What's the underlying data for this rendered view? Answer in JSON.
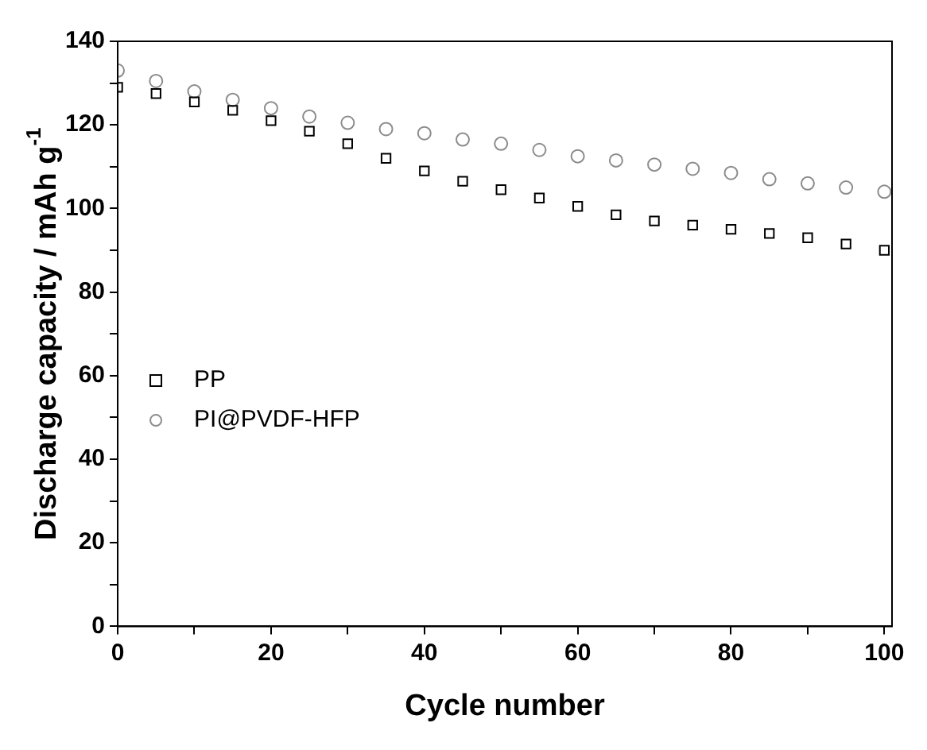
{
  "chart_data": {
    "type": "scatter",
    "xlabel": "Cycle number",
    "ylabel": "Discharge capacity / mAh g$^{-1}$",
    "x": [
      0,
      5,
      10,
      15,
      20,
      25,
      30,
      35,
      40,
      45,
      50,
      55,
      60,
      65,
      70,
      75,
      80,
      85,
      90,
      95,
      100
    ],
    "series": [
      {
        "name": "PP",
        "color": "#000000",
        "marker": "square",
        "values": [
          129,
          127.5,
          125.5,
          123.5,
          121,
          118.5,
          115.5,
          112,
          109,
          106.5,
          104.5,
          102.5,
          100.5,
          98.5,
          97,
          96,
          95,
          94,
          93,
          91.5,
          90
        ]
      },
      {
        "name": "PI@PVDF-HFP",
        "color": "#8c8c8c",
        "marker": "circle",
        "values": [
          133,
          130.5,
          128,
          126,
          124,
          122,
          120.5,
          119,
          118,
          116.5,
          115.5,
          114,
          112.5,
          111.5,
          110.5,
          109.5,
          108.5,
          107,
          106,
          105,
          104
        ]
      }
    ],
    "xlim": [
      0,
      101
    ],
    "xticks": [
      0,
      {
        "value": 10,
        "label": null
      },
      20,
      {
        "value": 30,
        "label": null
      },
      40,
      {
        "value": 50,
        "label": null
      },
      60,
      {
        "value": 70,
        "label": null
      },
      80,
      {
        "value": 90,
        "label": null
      },
      100
    ],
    "ylim": [
      0,
      140
    ],
    "yticks": [
      0,
      {
        "value": 10,
        "label": null
      },
      20,
      {
        "value": 30,
        "label": null
      },
      40,
      {
        "value": 50,
        "label": null
      },
      60,
      {
        "value": 70,
        "label": null
      },
      80,
      {
        "value": 90,
        "label": null
      },
      100,
      {
        "value": 110,
        "label": null
      },
      120,
      {
        "value": 130,
        "label": null
      },
      140
    ],
    "grid": false,
    "legend": "left"
  }
}
